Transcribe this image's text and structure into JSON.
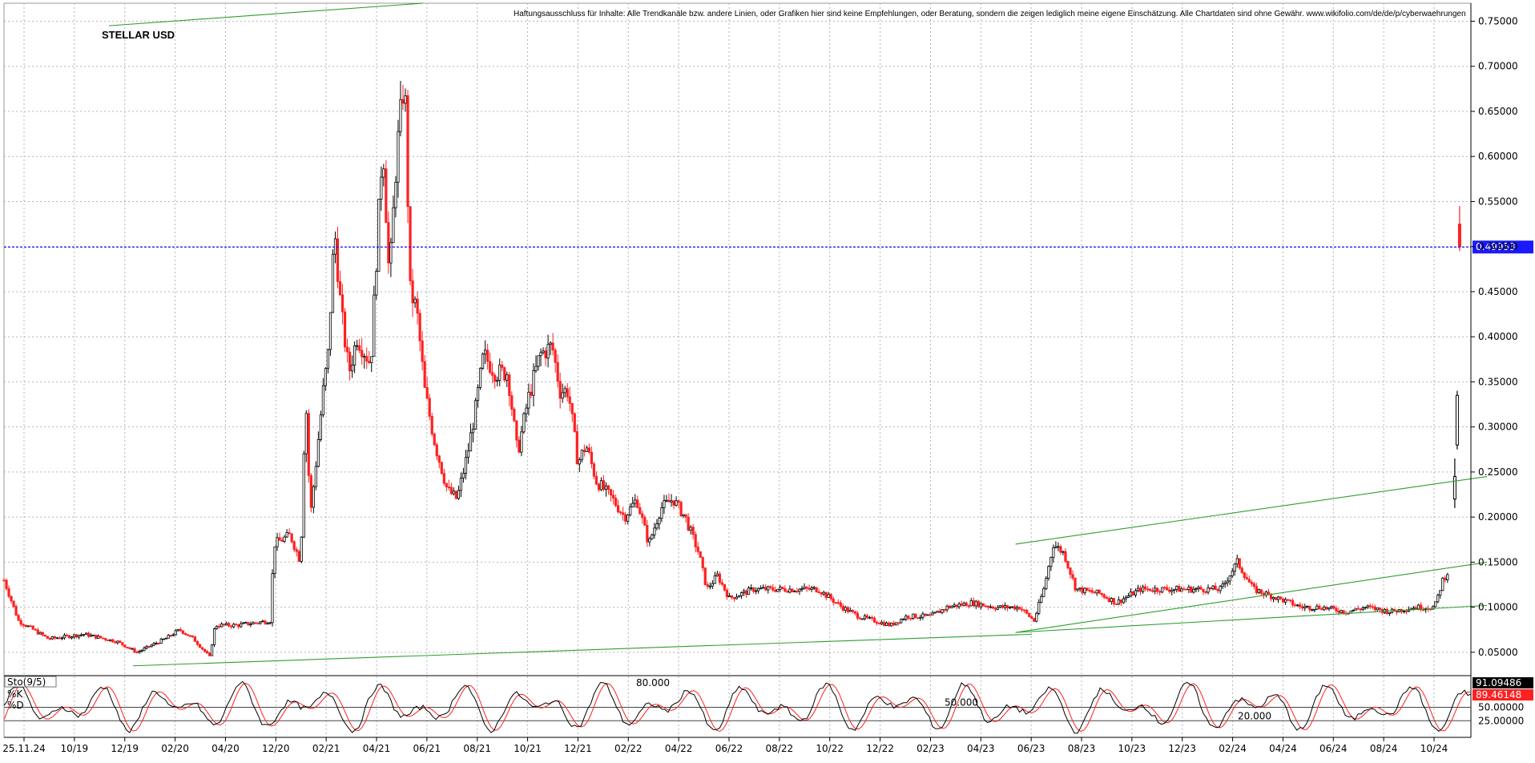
{
  "chart_data": {
    "type": "candlestick",
    "title": "STELLAR USD",
    "disclaimer": "Haftungsausschluss für Inhalte: Alle Trendkanäle bzw. andere Linien, oder Grafiken hier sind keine Empfehlungen, oder Beratung, sondern die zeigen lediglich meine eigene Einschätzung. Alle Chartdaten sind ohne Gewähr.  www.wikifolio.com/de/de/p/cyberwaehrungen",
    "ylim": [
      0.025,
      0.77
    ],
    "y_ticks": [
      "0.05000",
      "0.10000",
      "0.15000",
      "0.20000",
      "0.25000",
      "0.30000",
      "0.35000",
      "0.40000",
      "0.45000",
      "0.50000",
      "0.55000",
      "0.60000",
      "0.65000",
      "0.70000",
      "0.75000"
    ],
    "x_ticks": [
      "25.11.24",
      "10/19",
      "12/19",
      "02/20",
      "04/20",
      "12/20",
      "02/21",
      "04/21",
      "06/21",
      "08/21",
      "10/21",
      "12/21",
      "02/22",
      "04/22",
      "06/22",
      "08/22",
      "10/22",
      "12/22",
      "02/23",
      "04/23",
      "06/23",
      "08/23",
      "10/23",
      "12/23",
      "02/24",
      "04/24",
      "06/24",
      "08/24",
      "10/24"
    ],
    "price_line": {
      "label": "0.49953",
      "value": 0.49953,
      "color": "#1a1aff"
    },
    "colors": {
      "up": "#000000",
      "down": "#ff2020",
      "trend": "#2e9e2e",
      "grid": "#b4b4b4"
    },
    "keypoints": [
      [
        0,
        0.13
      ],
      [
        18,
        0.085
      ],
      [
        55,
        0.065
      ],
      [
        100,
        0.07
      ],
      [
        140,
        0.062
      ],
      [
        165,
        0.05
      ],
      [
        200,
        0.065
      ],
      [
        218,
        0.075
      ],
      [
        235,
        0.065
      ],
      [
        255,
        0.045
      ],
      [
        262,
        0.08
      ],
      [
        290,
        0.08
      ],
      [
        330,
        0.085
      ],
      [
        335,
        0.17
      ],
      [
        355,
        0.18
      ],
      [
        368,
        0.15
      ],
      [
        374,
        0.34
      ],
      [
        380,
        0.2
      ],
      [
        387,
        0.26
      ],
      [
        396,
        0.34
      ],
      [
        402,
        0.38
      ],
      [
        410,
        0.52
      ],
      [
        418,
        0.43
      ],
      [
        428,
        0.36
      ],
      [
        438,
        0.4
      ],
      [
        455,
        0.37
      ],
      [
        470,
        0.62
      ],
      [
        478,
        0.46
      ],
      [
        487,
        0.6
      ],
      [
        497,
        0.69
      ],
      [
        504,
        0.45
      ],
      [
        512,
        0.43
      ],
      [
        522,
        0.34
      ],
      [
        535,
        0.28
      ],
      [
        550,
        0.23
      ],
      [
        562,
        0.22
      ],
      [
        575,
        0.27
      ],
      [
        585,
        0.32
      ],
      [
        595,
        0.38
      ],
      [
        610,
        0.36
      ],
      [
        625,
        0.36
      ],
      [
        637,
        0.27
      ],
      [
        650,
        0.33
      ],
      [
        665,
        0.38
      ],
      [
        680,
        0.39
      ],
      [
        690,
        0.34
      ],
      [
        700,
        0.34
      ],
      [
        712,
        0.26
      ],
      [
        722,
        0.28
      ],
      [
        735,
        0.24
      ],
      [
        755,
        0.22
      ],
      [
        770,
        0.2
      ],
      [
        785,
        0.22
      ],
      [
        800,
        0.17
      ],
      [
        815,
        0.21
      ],
      [
        830,
        0.22
      ],
      [
        845,
        0.2
      ],
      [
        862,
        0.16
      ],
      [
        872,
        0.12
      ],
      [
        885,
        0.135
      ],
      [
        900,
        0.11
      ],
      [
        930,
        0.12
      ],
      [
        960,
        0.12
      ],
      [
        990,
        0.12
      ],
      [
        1010,
        0.12
      ],
      [
        1040,
        0.1
      ],
      [
        1060,
        0.09
      ],
      [
        1080,
        0.085
      ],
      [
        1100,
        0.08
      ],
      [
        1120,
        0.09
      ],
      [
        1150,
        0.09
      ],
      [
        1170,
        0.1
      ],
      [
        1200,
        0.105
      ],
      [
        1230,
        0.1
      ],
      [
        1260,
        0.1
      ],
      [
        1278,
        0.085
      ],
      [
        1290,
        0.12
      ],
      [
        1302,
        0.17
      ],
      [
        1315,
        0.16
      ],
      [
        1330,
        0.12
      ],
      [
        1360,
        0.115
      ],
      [
        1380,
        0.105
      ],
      [
        1410,
        0.12
      ],
      [
        1440,
        0.12
      ],
      [
        1470,
        0.12
      ],
      [
        1510,
        0.12
      ],
      [
        1530,
        0.15
      ],
      [
        1550,
        0.12
      ],
      [
        1580,
        0.11
      ],
      [
        1610,
        0.1
      ],
      [
        1635,
        0.1
      ],
      [
        1665,
        0.095
      ],
      [
        1690,
        0.1
      ],
      [
        1720,
        0.095
      ],
      [
        1750,
        0.1
      ],
      [
        1775,
        0.1
      ],
      [
        1785,
        0.13
      ],
      [
        1792,
        0.14
      ]
    ],
    "spikes": [
      {
        "index": 1800,
        "open": 0.22,
        "close": 0.245,
        "high": 0.265,
        "low": 0.21,
        "dir": "up"
      },
      {
        "index": 1803,
        "open": 0.28,
        "close": 0.335,
        "high": 0.34,
        "low": 0.275,
        "dir": "up"
      },
      {
        "index": 1806,
        "open": 0.525,
        "close": 0.5,
        "high": 0.545,
        "low": 0.495,
        "dir": "down"
      }
    ],
    "trendlines": [
      {
        "from": [
          130,
          0.745
        ],
        "to": [
          520,
          0.77
        ]
      },
      {
        "from": [
          160,
          0.035
        ],
        "to": [
          1275,
          0.07
        ]
      },
      {
        "from": [
          1255,
          0.072
        ],
        "to": [
          1840,
          0.15
        ]
      },
      {
        "from": [
          1255,
          0.072
        ],
        "to": [
          1840,
          0.102
        ]
      },
      {
        "from": [
          1255,
          0.17
        ],
        "to": [
          1840,
          0.245
        ]
      }
    ],
    "indicator": {
      "name": "Sto(9/5)",
      "k_label": "%K",
      "d_label": "%D",
      "k_value": "91.09486",
      "d_value": "89.46148",
      "levels": [
        "50.00000",
        "25.00000"
      ],
      "inline_labels": [
        "80.000",
        "50.000",
        "20.000"
      ],
      "series_color_k": "#000000",
      "series_color_d": "#ff2020"
    }
  }
}
